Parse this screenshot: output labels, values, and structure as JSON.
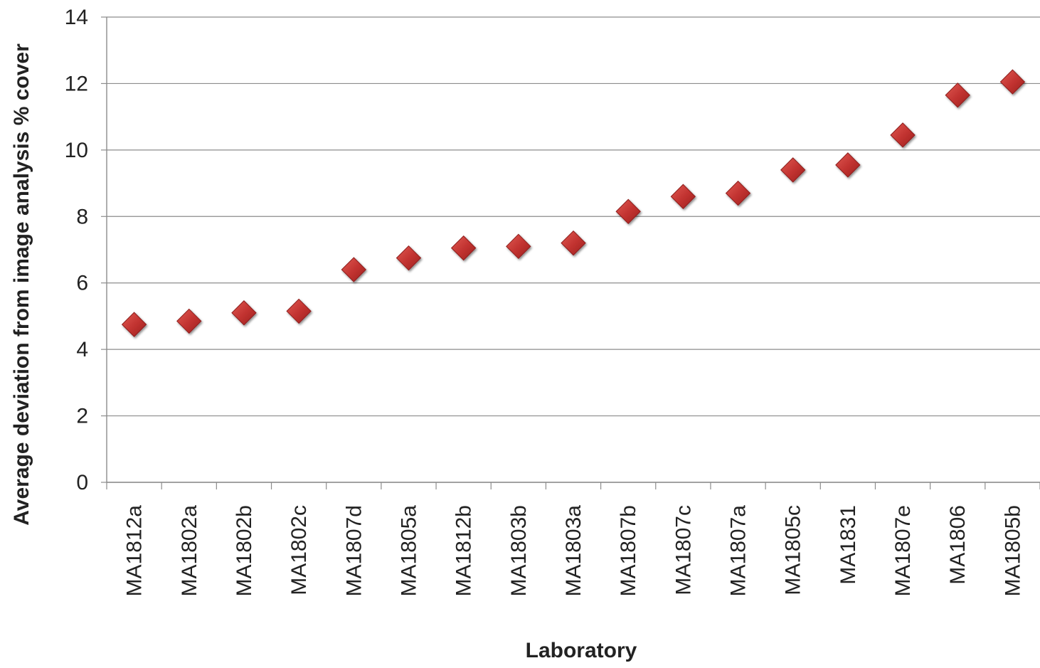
{
  "chart_data": {
    "type": "scatter",
    "title": "",
    "xlabel": "Laboratory",
    "ylabel": "Average deviation from image analysis % cover",
    "categories": [
      "MA1812a",
      "MA1802a",
      "MA1802b",
      "MA1802c",
      "MA1807d",
      "MA1805a",
      "MA1812b",
      "MA1803b",
      "MA1803a",
      "MA1807b",
      "MA1807c",
      "MA1807a",
      "MA1805c",
      "MA1831",
      "MA1807e",
      "MA1806",
      "MA1805b"
    ],
    "series": [
      {
        "values": [
          4.75,
          4.85,
          5.1,
          5.15,
          6.4,
          6.75,
          7.05,
          7.1,
          7.2,
          8.15,
          8.6,
          8.7,
          9.4,
          9.55,
          10.45,
          11.65,
          12.05
        ]
      }
    ],
    "ylim": [
      0,
      14
    ],
    "yticks": [
      "0",
      "2",
      "4",
      "6",
      "8",
      "10",
      "12",
      "14"
    ],
    "grid": true,
    "legend": "none",
    "marker": "diamond",
    "colors": {
      "marker": "#c0312f",
      "marker_edge": "#8e1f1d",
      "grid": "#8c8c8c",
      "axis": "#8c8c8c"
    }
  }
}
